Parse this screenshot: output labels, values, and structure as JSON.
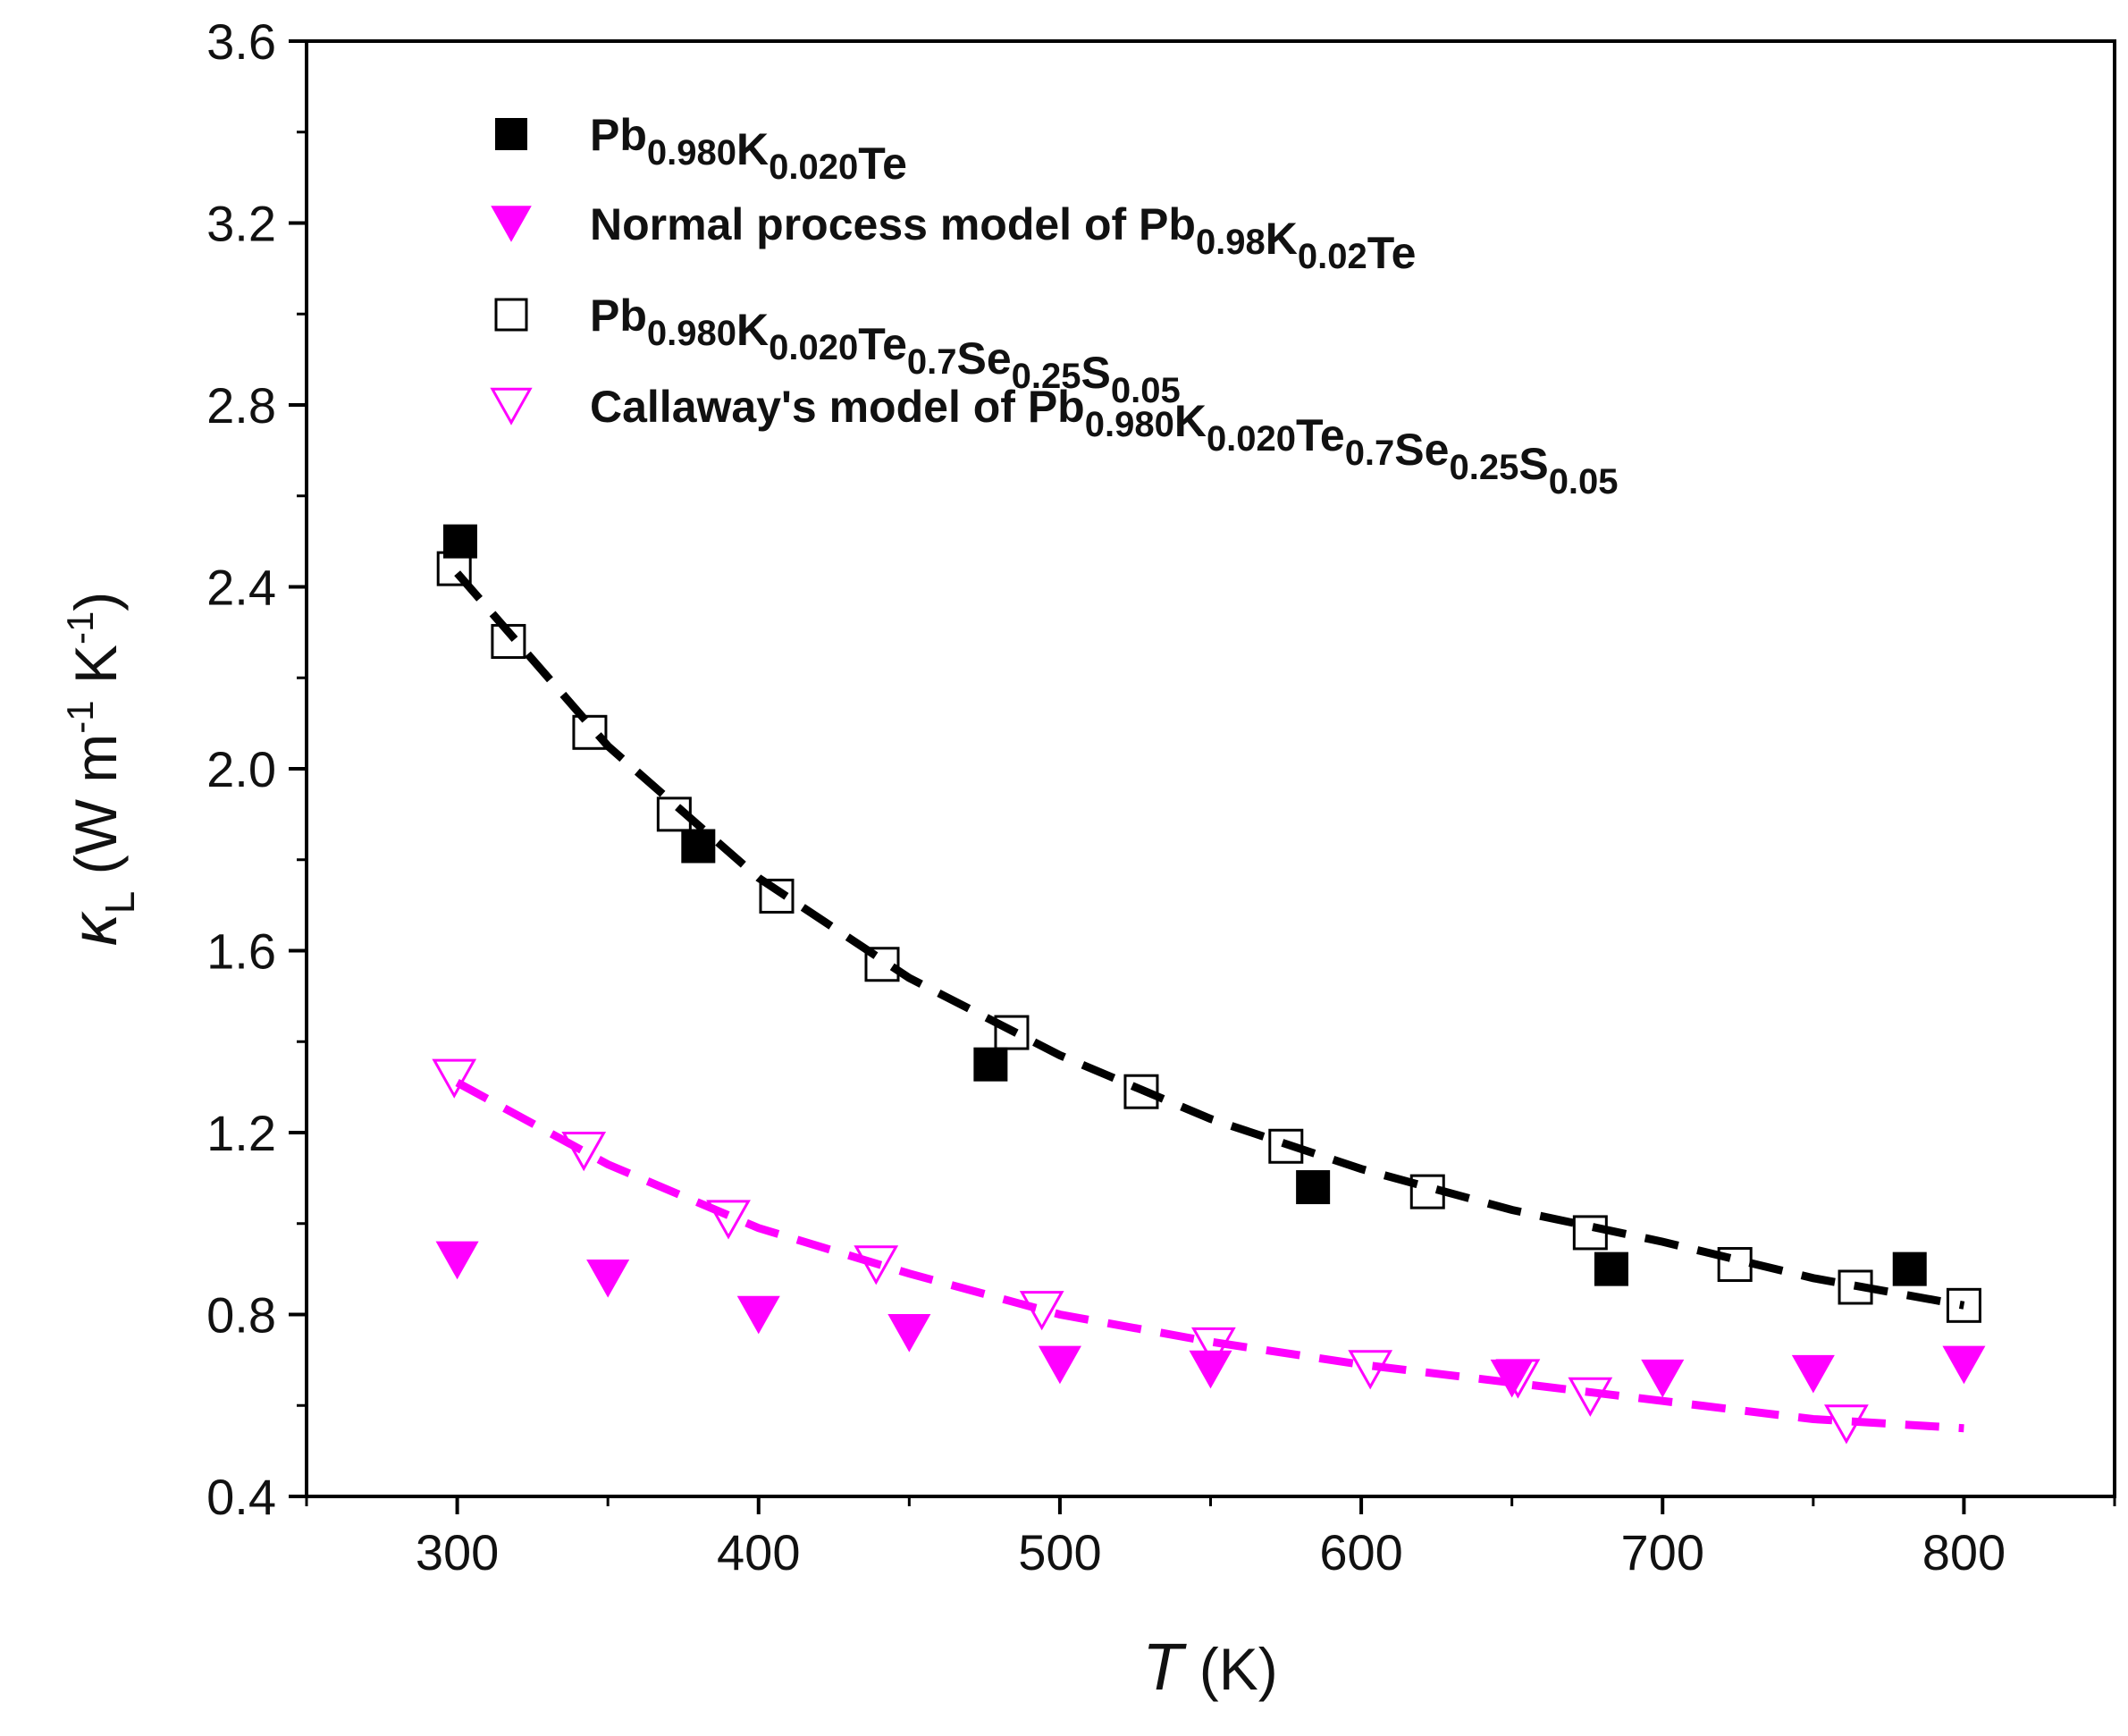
{
  "chart_data": {
    "type": "scatter",
    "title": "",
    "xlabel": "T (K)",
    "ylabel": "κL (W m-1 K-1)",
    "xlim": [
      250,
      850
    ],
    "ylim": [
      0.4,
      3.6
    ],
    "xticks": [
      300,
      400,
      500,
      600,
      700,
      800
    ],
    "xtick_labels": [
      "300",
      "400",
      "500",
      "600",
      "700",
      "800"
    ],
    "yticks": [
      0.4,
      0.8,
      1.2,
      1.6,
      2.0,
      2.4,
      2.8,
      3.2,
      3.6
    ],
    "ytick_labels": [
      "0.4",
      "0.8",
      "1.2",
      "1.6",
      "2.0",
      "2.4",
      "2.8",
      "3.2",
      "3.6"
    ],
    "legend_position": "top-left",
    "series": [
      {
        "name": "Pb0.980K0.020Te",
        "label_parts": [
          [
            "Pb",
            "base"
          ],
          [
            "0.980",
            "sub"
          ],
          [
            "K",
            "base"
          ],
          [
            "0.020",
            "sub"
          ],
          [
            "Te",
            "base"
          ]
        ],
        "marker": "square-filled",
        "color": "#000000",
        "x": [
          301,
          380,
          477,
          584,
          683,
          782
        ],
        "y": [
          2.5,
          1.83,
          1.35,
          1.08,
          0.9,
          0.9
        ]
      },
      {
        "name": "Normal process model of Pb0.98K0.02Te",
        "label_parts": [
          [
            "Normal process model of Pb",
            "base"
          ],
          [
            "0.98",
            "sub"
          ],
          [
            "K",
            "base"
          ],
          [
            "0.02",
            "sub"
          ],
          [
            "Te",
            "base"
          ]
        ],
        "marker": "triangle-down-filled",
        "color": "#ff00ff",
        "x": [
          300,
          350,
          400,
          450,
          500,
          550,
          650,
          700,
          750,
          800
        ],
        "y": [
          0.92,
          0.88,
          0.8,
          0.76,
          0.69,
          0.68,
          0.66,
          0.66,
          0.67,
          0.69
        ]
      },
      {
        "name": "Pb0.980K0.020Te0.7Se0.25S0.05",
        "label_parts": [
          [
            "Pb",
            "base"
          ],
          [
            "0.980",
            "sub"
          ],
          [
            "K",
            "base"
          ],
          [
            "0.020",
            "sub"
          ],
          [
            "Te",
            "base"
          ],
          [
            "0.7",
            "sub"
          ],
          [
            "Se",
            "base"
          ],
          [
            "0.25",
            "sub"
          ],
          [
            "S",
            "base"
          ],
          [
            "0.05",
            "sub"
          ]
        ],
        "marker": "square-open",
        "color": "#000000",
        "x": [
          299,
          317,
          344,
          372,
          406,
          441,
          484,
          527,
          575,
          622,
          676,
          724,
          764,
          800
        ],
        "y": [
          2.44,
          2.28,
          2.08,
          1.9,
          1.72,
          1.57,
          1.42,
          1.29,
          1.17,
          1.07,
          0.98,
          0.91,
          0.86,
          0.82
        ]
      },
      {
        "name": "Callaway's model of Pb0.980K0.020Te0.7Se0.25S0.05",
        "label_parts": [
          [
            "Callaway's model of Pb",
            "base"
          ],
          [
            "0.980",
            "sub"
          ],
          [
            "K",
            "base"
          ],
          [
            "0.020",
            "sub"
          ],
          [
            "Te",
            "base"
          ],
          [
            "0.7",
            "sub"
          ],
          [
            "Se",
            "base"
          ],
          [
            "0.25",
            "sub"
          ],
          [
            "S",
            "base"
          ],
          [
            "0.05",
            "sub"
          ]
        ],
        "marker": "triangle-down-open",
        "color": "#ff00ff",
        "x": [
          299,
          342,
          390,
          439,
          494,
          551,
          603,
          652,
          676,
          761
        ],
        "y": [
          1.32,
          1.16,
          1.01,
          0.91,
          0.81,
          0.73,
          0.68,
          0.66,
          0.62,
          0.56
        ]
      }
    ],
    "fit_lines": [
      {
        "name": "fit-black-dashed",
        "color": "#000000",
        "style": "dashed",
        "x": [
          300,
          350,
          400,
          450,
          500,
          550,
          600,
          650,
          700,
          750,
          800
        ],
        "y": [
          2.43,
          2.05,
          1.76,
          1.54,
          1.37,
          1.23,
          1.12,
          1.03,
          0.96,
          0.88,
          0.82
        ]
      },
      {
        "name": "fit-magenta-dashed",
        "color": "#ff00ff",
        "style": "dashed",
        "x": [
          300,
          350,
          400,
          450,
          500,
          550,
          600,
          650,
          700,
          750,
          800
        ],
        "y": [
          1.31,
          1.13,
          0.99,
          0.89,
          0.8,
          0.74,
          0.69,
          0.65,
          0.61,
          0.57,
          0.55
        ]
      }
    ]
  }
}
